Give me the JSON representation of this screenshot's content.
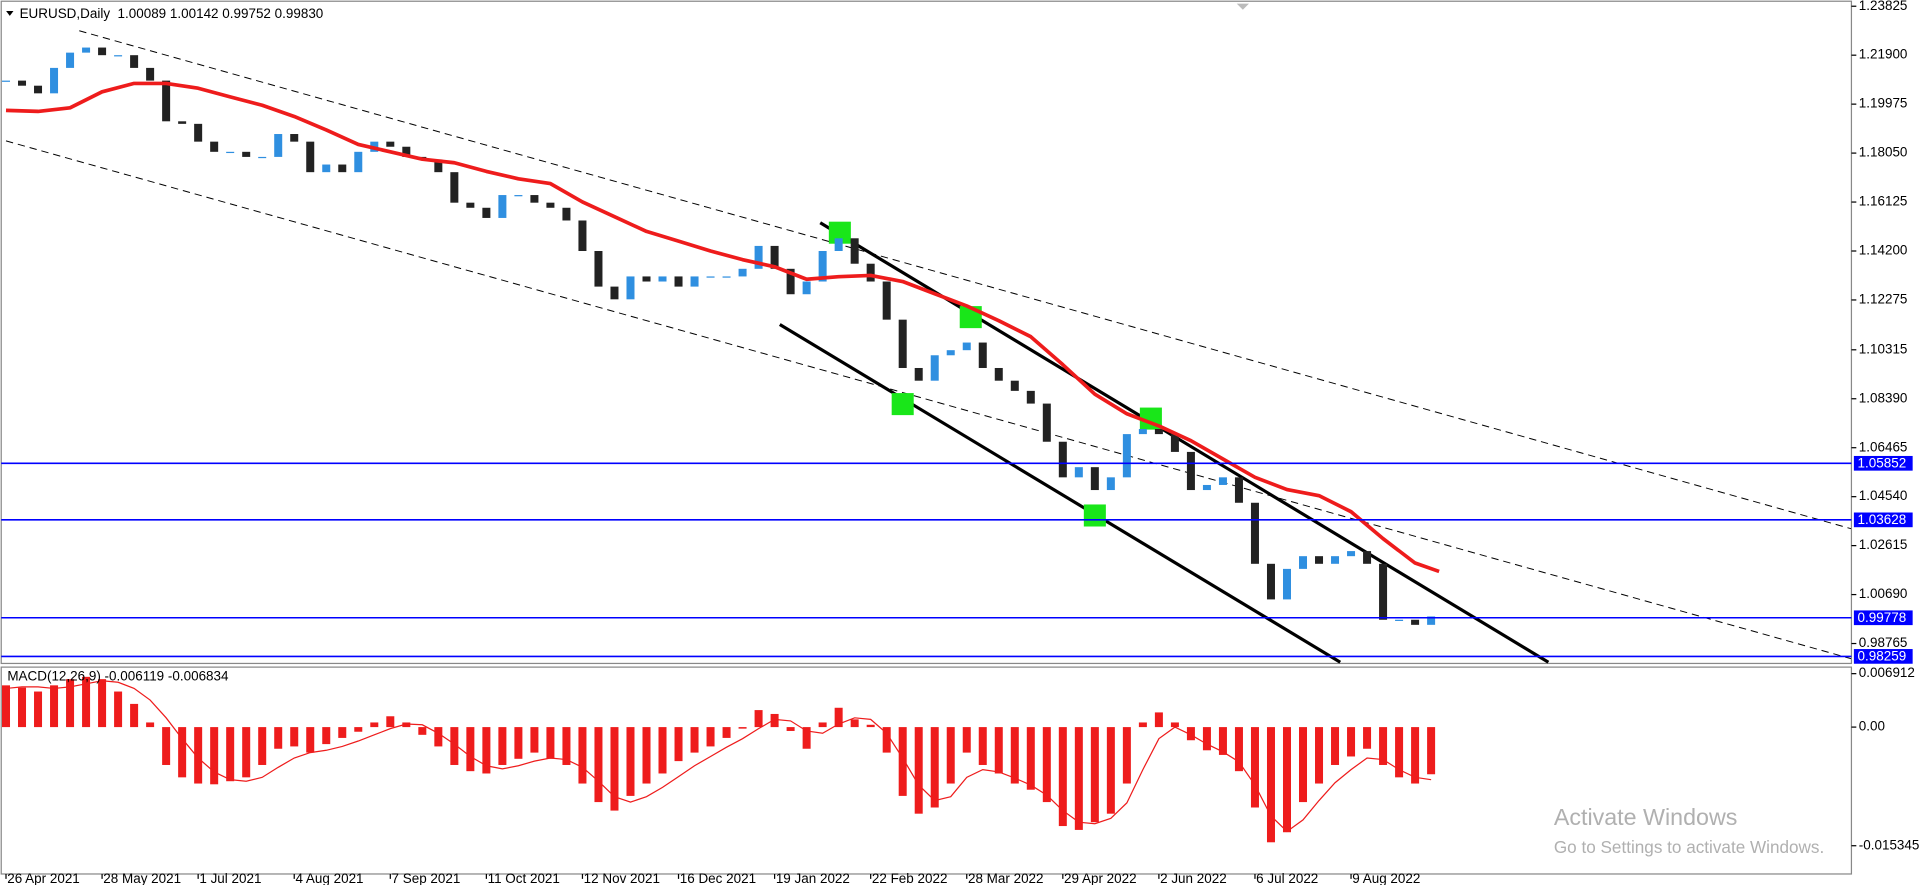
{
  "header": "EURUSD,Daily  1.00089 1.00142 0.99752 0.99830",
  "watermark": {
    "title": "Activate Windows",
    "subtitle": "Go to Settings to activate Windows."
  },
  "chart_data": [
    {
      "type": "candlestick",
      "x": [
        0,
        4,
        8,
        12,
        16,
        20,
        24,
        28,
        32,
        36,
        40,
        44,
        48,
        52,
        56,
        60,
        64,
        68,
        72,
        76,
        80,
        84,
        88,
        92,
        96,
        100,
        104,
        108,
        112,
        116,
        120,
        124,
        128,
        132,
        136,
        140,
        144,
        148,
        152,
        156,
        160,
        164,
        168,
        172,
        176,
        180,
        184,
        188,
        192,
        196,
        200,
        204,
        208,
        212,
        216,
        220,
        224,
        228,
        232,
        236,
        240,
        244,
        248,
        252,
        256,
        260,
        264,
        268,
        272,
        276,
        280,
        284,
        288,
        292,
        296,
        300,
        304,
        308,
        312,
        316,
        320,
        324,
        328,
        332,
        336,
        340,
        344,
        348,
        352,
        356
      ],
      "close": [
        1.209,
        1.207,
        1.204,
        1.214,
        1.22,
        1.222,
        1.219,
        1.219,
        1.214,
        1.209,
        1.193,
        1.192,
        1.185,
        1.181,
        1.181,
        1.179,
        1.179,
        1.188,
        1.185,
        1.173,
        1.176,
        1.173,
        1.181,
        1.185,
        1.183,
        1.179,
        1.178,
        1.173,
        1.161,
        1.159,
        1.155,
        1.164,
        1.164,
        1.161,
        1.159,
        1.154,
        1.142,
        1.128,
        1.123,
        1.132,
        1.13,
        1.132,
        1.128,
        1.132,
        1.132,
        1.132,
        1.135,
        1.144,
        1.135,
        1.125,
        1.13,
        1.142,
        1.147,
        1.137,
        1.13,
        1.115,
        1.096,
        1.091,
        1.101,
        1.103,
        1.106,
        1.096,
        1.091,
        1.087,
        1.082,
        1.067,
        1.053,
        1.057,
        1.048,
        1.053,
        1.07,
        1.072,
        1.07,
        1.063,
        1.048,
        1.05,
        1.053,
        1.043,
        1.019,
        1.005,
        1.017,
        1.022,
        1.019,
        1.022,
        1.024,
        1.019,
        0.997,
        0.997,
        0.995,
        0.9983
      ],
      "up_color": "#2f8fe0",
      "down_color": "#222222",
      "xlim": [
        -1.5,
        461
      ],
      "ylim": [
        0.9803,
        1.2407
      ],
      "yticks": [
        1.23825,
        {
          "value": 1.219,
          "label": "1.21900"
        },
        1.19975,
        {
          "value": 1.1805,
          "label": "1.18050"
        },
        1.16125,
        {
          "value": 1.142,
          "label": "1.14200"
        },
        1.12275,
        1.10315,
        {
          "value": 1.0839,
          "label": "1.08390"
        },
        1.06465,
        {
          "value": 1.0454,
          "label": "1.04540"
        },
        1.02615,
        {
          "value": 1.0069,
          "label": "1.00690"
        },
        0.98765
      ],
      "ma": {
        "color": "#ee1c1c",
        "x": [
          0,
          8,
          16,
          24,
          32,
          40,
          48,
          56,
          64,
          72,
          80,
          88,
          96,
          104,
          112,
          120,
          128,
          136,
          144,
          152,
          160,
          168,
          176,
          184,
          192,
          200,
          208,
          216,
          224,
          232,
          240,
          248,
          256,
          264,
          272,
          280,
          288,
          296,
          304,
          312,
          320,
          328,
          336,
          344,
          352,
          358
        ],
        "values": [
          1.1973,
          1.1969,
          1.1983,
          1.2046,
          1.2079,
          1.2079,
          1.206,
          1.2026,
          1.1993,
          1.1949,
          1.1896,
          1.1839,
          1.181,
          1.1781,
          1.1767,
          1.1733,
          1.1704,
          1.1685,
          1.1613,
          1.1555,
          1.1497,
          1.1459,
          1.142,
          1.1386,
          1.1358,
          1.1309,
          1.1319,
          1.1324,
          1.13,
          1.1252,
          1.1204,
          1.1146,
          1.1083,
          1.0973,
          1.0857,
          1.078,
          1.0732,
          1.0674,
          1.0602,
          1.053,
          1.0482,
          1.0458,
          1.0395,
          1.0289,
          1.0193,
          1.016
        ]
      },
      "hlines": [
        1.05852,
        1.03628,
        0.99778,
        0.98259
      ],
      "hline_color": "#0000ff",
      "trend_lines": [
        {
          "x": [
            18.3,
            460.9
          ],
          "y": [
            1.2286,
            1.0328
          ],
          "style": "dashed"
        },
        {
          "x": [
            0,
            460.9
          ],
          "y": [
            1.1853,
            0.9817
          ],
          "style": "dashed"
        },
        {
          "x": [
            203.4,
            385.3
          ],
          "y": [
            1.1531,
            0.9803
          ],
          "style": "solid"
        },
        {
          "x": [
            193.3,
            333.3
          ],
          "y": [
            1.1131,
            0.9803
          ],
          "style": "solid"
        }
      ],
      "markers": {
        "color": "#19e619",
        "x": [
          208.3,
          241,
          224,
          286,
          272
        ],
        "y": [
          1.1492,
          1.116,
          1.0818,
          1.0761,
          1.038
        ]
      }
    },
    {
      "type": "macd",
      "title": "MACD(12,26,9) -0.006119 -0.006834",
      "x": [
        0,
        4,
        8,
        12,
        16,
        20,
        24,
        28,
        32,
        36,
        40,
        44,
        48,
        52,
        56,
        60,
        64,
        68,
        72,
        76,
        80,
        84,
        88,
        92,
        96,
        100,
        104,
        108,
        112,
        116,
        120,
        124,
        128,
        132,
        136,
        140,
        144,
        148,
        152,
        156,
        160,
        164,
        168,
        172,
        176,
        180,
        184,
        188,
        192,
        196,
        200,
        204,
        208,
        212,
        216,
        220,
        224,
        228,
        232,
        236,
        240,
        244,
        248,
        252,
        256,
        260,
        264,
        268,
        272,
        276,
        280,
        284,
        288,
        292,
        296,
        300,
        304,
        308,
        312,
        316,
        320,
        324,
        328,
        332,
        336,
        340,
        344,
        348,
        352,
        356
      ],
      "histogram": [
        0.0054,
        0.0051,
        0.0046,
        0.0054,
        0.0062,
        0.0065,
        0.0062,
        0.0046,
        0.003,
        0.0006,
        -0.0049,
        -0.0065,
        -0.0073,
        -0.0074,
        -0.007,
        -0.0065,
        -0.0049,
        -0.0028,
        -0.0025,
        -0.0033,
        -0.0022,
        -0.0014,
        -0.0006,
        0.0006,
        0.0014,
        0.0006,
        -0.001,
        -0.0025,
        -0.0049,
        -0.0057,
        -0.006,
        -0.0049,
        -0.0041,
        -0.0033,
        -0.0041,
        -0.0049,
        -0.0073,
        -0.0097,
        -0.0108,
        -0.0089,
        -0.0073,
        -0.006,
        -0.0044,
        -0.0033,
        -0.0025,
        -0.0014,
        -0.0002,
        0.0022,
        0.0017,
        -0.0005,
        -0.0028,
        0.0006,
        0.0025,
        0.001,
        0.0003,
        -0.0033,
        -0.0089,
        -0.0112,
        -0.0104,
        -0.0073,
        -0.0033,
        -0.0049,
        -0.006,
        -0.0073,
        -0.0081,
        -0.0097,
        -0.0128,
        -0.0133,
        -0.0123,
        -0.0112,
        -0.0073,
        0.0006,
        0.0019,
        0.0006,
        -0.0017,
        -0.003,
        -0.0036,
        -0.0057,
        -0.0104,
        -0.0149,
        -0.0136,
        -0.0097,
        -0.0073,
        -0.0049,
        -0.0038,
        -0.0028,
        -0.0049,
        -0.0065,
        -0.0073,
        -0.0061
      ],
      "signal": [
        0.005,
        0.0052,
        0.0052,
        0.005,
        0.0052,
        0.0056,
        0.006,
        0.0058,
        0.005,
        0.0035,
        0.0012,
        -0.0015,
        -0.004,
        -0.0058,
        -0.0068,
        -0.007,
        -0.0065,
        -0.0052,
        -0.004,
        -0.0033,
        -0.003,
        -0.0025,
        -0.0018,
        -0.001,
        -0.0002,
        0.0004,
        0.0003,
        -0.0008,
        -0.0022,
        -0.0038,
        -0.005,
        -0.0054,
        -0.005,
        -0.0044,
        -0.004,
        -0.0042,
        -0.0052,
        -0.007,
        -0.009,
        -0.0097,
        -0.009,
        -0.0078,
        -0.0064,
        -0.005,
        -0.0038,
        -0.0026,
        -0.0015,
        -0.0002,
        0.001,
        0.0008,
        -0.0005,
        -0.0008,
        0.0004,
        0.0012,
        0.001,
        -0.0008,
        -0.004,
        -0.0075,
        -0.0095,
        -0.009,
        -0.0065,
        -0.0055,
        -0.0058,
        -0.0066,
        -0.0075,
        -0.0088,
        -0.0108,
        -0.0123,
        -0.0125,
        -0.0118,
        -0.0098,
        -0.0055,
        -0.0015,
        0.0,
        -0.001,
        -0.0022,
        -0.0032,
        -0.0045,
        -0.0075,
        -0.0115,
        -0.0135,
        -0.012,
        -0.0095,
        -0.0072,
        -0.0055,
        -0.004,
        -0.0042,
        -0.0055,
        -0.0065,
        -0.0068
      ],
      "color": "#ee1c1c",
      "xlim": [
        -1.5,
        461
      ],
      "ylim": [
        -0.019,
        0.0076
      ],
      "yticks": [
        0.006912,
        {
          "value": 0,
          "label": "0.00"
        },
        -0.015345
      ],
      "xticks": [
        {
          "value": 0,
          "label": "26 Apr 2021"
        },
        {
          "value": 24,
          "label": "28 May 2021"
        },
        {
          "value": 48,
          "label": "1 Jul 2021"
        },
        {
          "value": 72,
          "label": "4 Aug 2021"
        },
        {
          "value": 96,
          "label": "7 Sep 2021"
        },
        {
          "value": 120,
          "label": "11 Oct 2021"
        },
        {
          "value": 144,
          "label": "12 Nov 2021"
        },
        {
          "value": 168,
          "label": "16 Dec 2021"
        },
        {
          "value": 192,
          "label": "19 Jan 2022"
        },
        {
          "value": 216,
          "label": "22 Feb 2022"
        },
        {
          "value": 240,
          "label": "28 Mar 2022"
        },
        {
          "value": 264,
          "label": "29 Apr 2022"
        },
        {
          "value": 288,
          "label": "2 Jun 2022"
        },
        {
          "value": 312,
          "label": "6 Jul 2022"
        },
        {
          "value": 336,
          "label": "9 Aug 2022"
        }
      ]
    }
  ]
}
